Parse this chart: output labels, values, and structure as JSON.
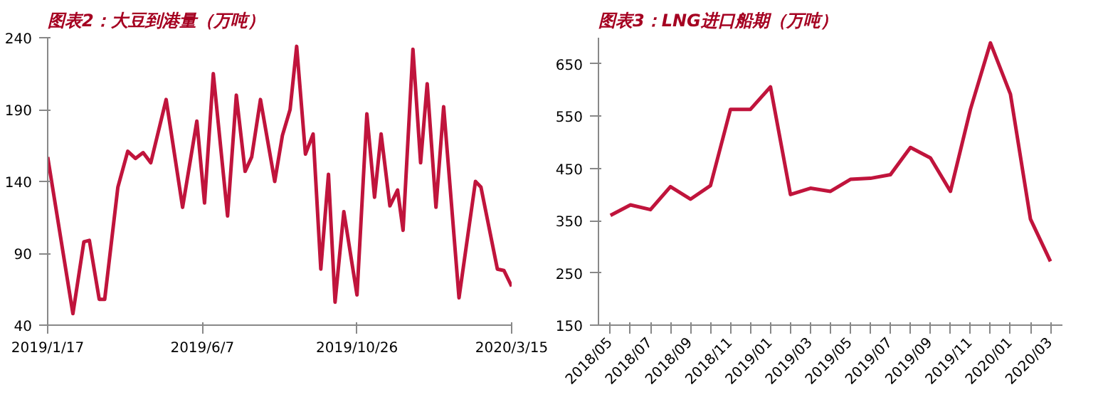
{
  "chart_data": [
    {
      "type": "line",
      "title": "图表2：大豆到港量（万吨）",
      "x": [
        "2019-01-17",
        "2019-02-09",
        "2019-02-19",
        "2019-02-24",
        "2019-03-05",
        "2019-03-10",
        "2019-03-22",
        "2019-03-31",
        "2019-04-07",
        "2019-04-14",
        "2019-04-21",
        "2019-05-05",
        "2019-05-20",
        "2019-06-02",
        "2019-06-09",
        "2019-06-17",
        "2019-06-30",
        "2019-07-08",
        "2019-07-16",
        "2019-07-22",
        "2019-07-30",
        "2019-08-12",
        "2019-08-19",
        "2019-08-26",
        "2019-09-01",
        "2019-09-09",
        "2019-09-16",
        "2019-09-23",
        "2019-09-30",
        "2019-10-06",
        "2019-10-14",
        "2019-10-26",
        "2019-11-04",
        "2019-11-11",
        "2019-11-17",
        "2019-11-25",
        "2019-12-02",
        "2019-12-07",
        "2019-12-16",
        "2019-12-23",
        "2019-12-29",
        "2020-01-06",
        "2020-01-13",
        "2020-01-27",
        "2020-02-11",
        "2020-02-16",
        "2020-03-02",
        "2020-03-08",
        "2020-03-15"
      ],
      "series": [
        {
          "color": "#c0143c",
          "values": [
            157,
            48,
            98,
            99,
            58,
            58,
            136,
            161,
            156,
            160,
            153,
            197,
            122,
            182,
            125,
            215,
            116,
            200,
            147,
            157,
            197,
            140,
            172,
            190,
            234,
            159,
            173,
            79,
            145,
            56,
            119,
            61,
            187,
            129,
            173,
            123,
            134,
            106,
            232,
            153,
            208,
            122,
            192,
            59,
            140,
            136,
            79,
            78,
            67
          ]
        }
      ],
      "xlim": [
        "2019-01-17",
        "2020-03-15"
      ],
      "xticks": [
        {
          "value": "2019-01-17",
          "label": "2019/1/17"
        },
        {
          "value": "2019-06-07",
          "label": "2019/6/7"
        },
        {
          "value": "2019-10-26",
          "label": "2019/10/26"
        },
        {
          "value": "2020-03-15",
          "label": "2020/3/15"
        }
      ],
      "ylim": [
        40,
        240
      ],
      "yticks": [
        40,
        90,
        140,
        190,
        240
      ],
      "grid": false
    },
    {
      "type": "line",
      "title": "图表3：LNG进口船期（万吨）",
      "categories": [
        "2018/05",
        null,
        "2018/07",
        null,
        "2018/09",
        null,
        "2018/11",
        null,
        "2019/01",
        null,
        "2019/03",
        null,
        "2019/05",
        null,
        "2019/07",
        null,
        "2019/09",
        null,
        "2019/11",
        null,
        "2020/01",
        null,
        "2020/03"
      ],
      "series": [
        {
          "color": "#c0143c",
          "values": [
            360,
            380,
            371,
            415,
            391,
            417,
            563,
            563,
            606,
            400,
            412,
            406,
            429,
            431,
            438,
            490,
            470,
            406,
            563,
            690,
            592,
            353,
            272
          ]
        }
      ],
      "ylim": [
        150,
        700
      ],
      "yticks": [
        150,
        250,
        350,
        450,
        550,
        650
      ],
      "grid": false
    }
  ]
}
